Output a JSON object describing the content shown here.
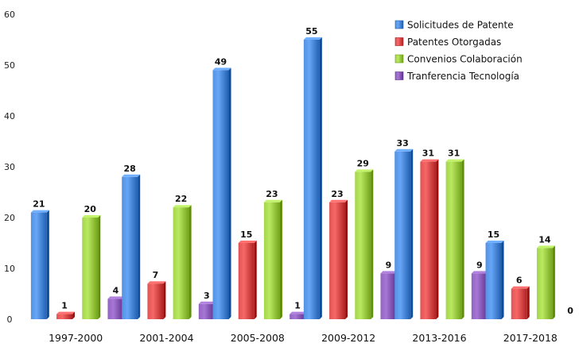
{
  "chart_data": {
    "type": "bar",
    "title": "",
    "xlabel": "",
    "ylabel": "",
    "ylim": [
      0,
      60
    ],
    "yticks": [
      0,
      10,
      20,
      30,
      40,
      50,
      60
    ],
    "grid": false,
    "legend_position": "top-right",
    "categories": [
      "1997-2000",
      "2001-2004",
      "2005-2008",
      "2009-2012",
      "2013-2016",
      "2017-2018"
    ],
    "series": [
      {
        "name": "Solicitudes de Patente",
        "color": "#3a78c9",
        "values": [
          21,
          28,
          49,
          55,
          33,
          15
        ]
      },
      {
        "name": "Patentes Otorgadas",
        "color": "#c93a3a",
        "values": [
          1,
          7,
          15,
          23,
          31,
          6
        ]
      },
      {
        "name": "Convenios Colaboración",
        "color": "#8cbc34",
        "values": [
          20,
          22,
          23,
          29,
          31,
          14
        ]
      },
      {
        "name": "Tranferencia Tecnología",
        "color": "#7a4aa8",
        "values": [
          4,
          3,
          1,
          9,
          9,
          0
        ]
      }
    ]
  }
}
